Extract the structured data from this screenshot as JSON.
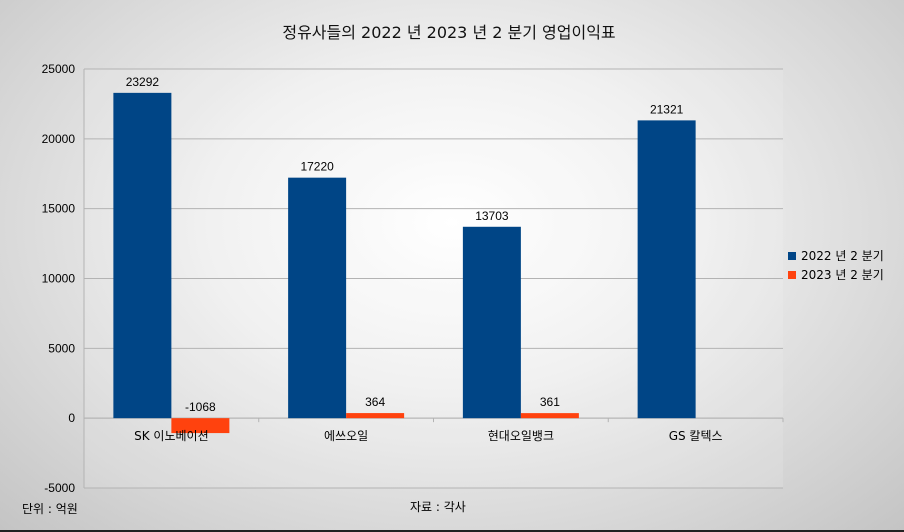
{
  "chart_data": {
    "type": "bar",
    "title": "정유사들의  2022 년  2023 년  2 분기  영업이익표",
    "categories": [
      "SK 이노베이션",
      "에쓰오일",
      "현대오일뱅크",
      "GS 칼텍스"
    ],
    "series": [
      {
        "name": "2022 년  2 분기",
        "color": "#004586",
        "values": [
          23292,
          17220,
          13703,
          21321
        ]
      },
      {
        "name": "2023 년  2 분기",
        "color": "#ff420e",
        "values": [
          -1068,
          364,
          361,
          null
        ]
      }
    ],
    "ylim": [
      -5000,
      25000
    ],
    "yticks": [
      -5000,
      0,
      5000,
      10000,
      15000,
      20000,
      25000
    ],
    "grid": true,
    "legend": "right"
  },
  "notes": {
    "unit": "단위 :  억원",
    "source": "자료 :  각사"
  }
}
